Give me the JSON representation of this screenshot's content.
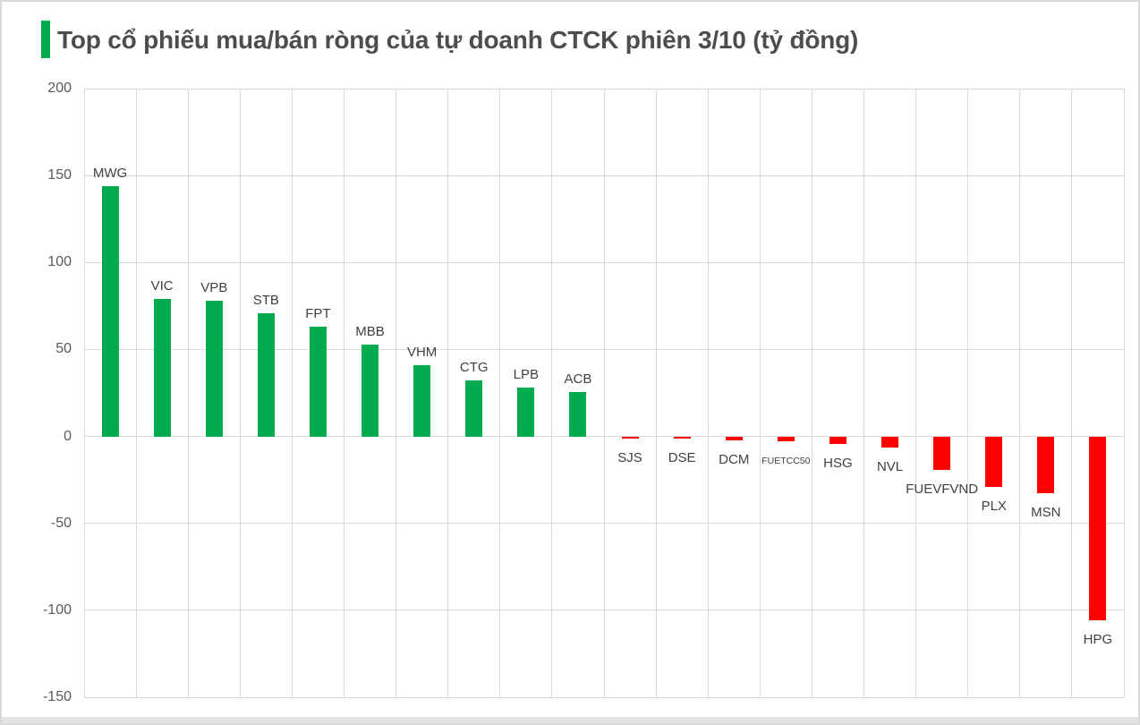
{
  "title": {
    "text": "Top cổ phiếu mua/bán ròng của tự doanh CTCK phiên 3/10 (tỷ đồng)",
    "accent_color": "#00AB50"
  },
  "chart_data": {
    "type": "bar",
    "title": "Top cổ phiếu mua/bán ròng của tự doanh CTCK phiên 3/10 (tỷ đồng)",
    "unit": "tỷ đồng",
    "categories": [
      "MWG",
      "VIC",
      "VPB",
      "STB",
      "FPT",
      "MBB",
      "VHM",
      "CTG",
      "LPB",
      "ACB",
      "SJS",
      "DSE",
      "DCM",
      "FUETCC50",
      "HSG",
      "NVL",
      "FUEVFVND",
      "PLX",
      "MSN",
      "HPG"
    ],
    "values": [
      144,
      79,
      78,
      71,
      63,
      53,
      41,
      32,
      28,
      25.5,
      -1.2,
      -1.2,
      -2.2,
      -3,
      -4.2,
      -6.5,
      -19.5,
      -29,
      -32.5,
      -105.5
    ],
    "positive_color": "#00AB50",
    "negative_color": "#FE0000",
    "ylim": [
      -150,
      200
    ],
    "y_ticks": [
      200,
      150,
      100,
      50,
      0,
      -50,
      -100,
      -150
    ],
    "grid": true,
    "gridline_color": "#D9D9D9",
    "axis_label_color": "#595959",
    "category_label_color": "#404040",
    "small_label_categories": [
      "FUETCC50"
    ],
    "legend": "none"
  }
}
